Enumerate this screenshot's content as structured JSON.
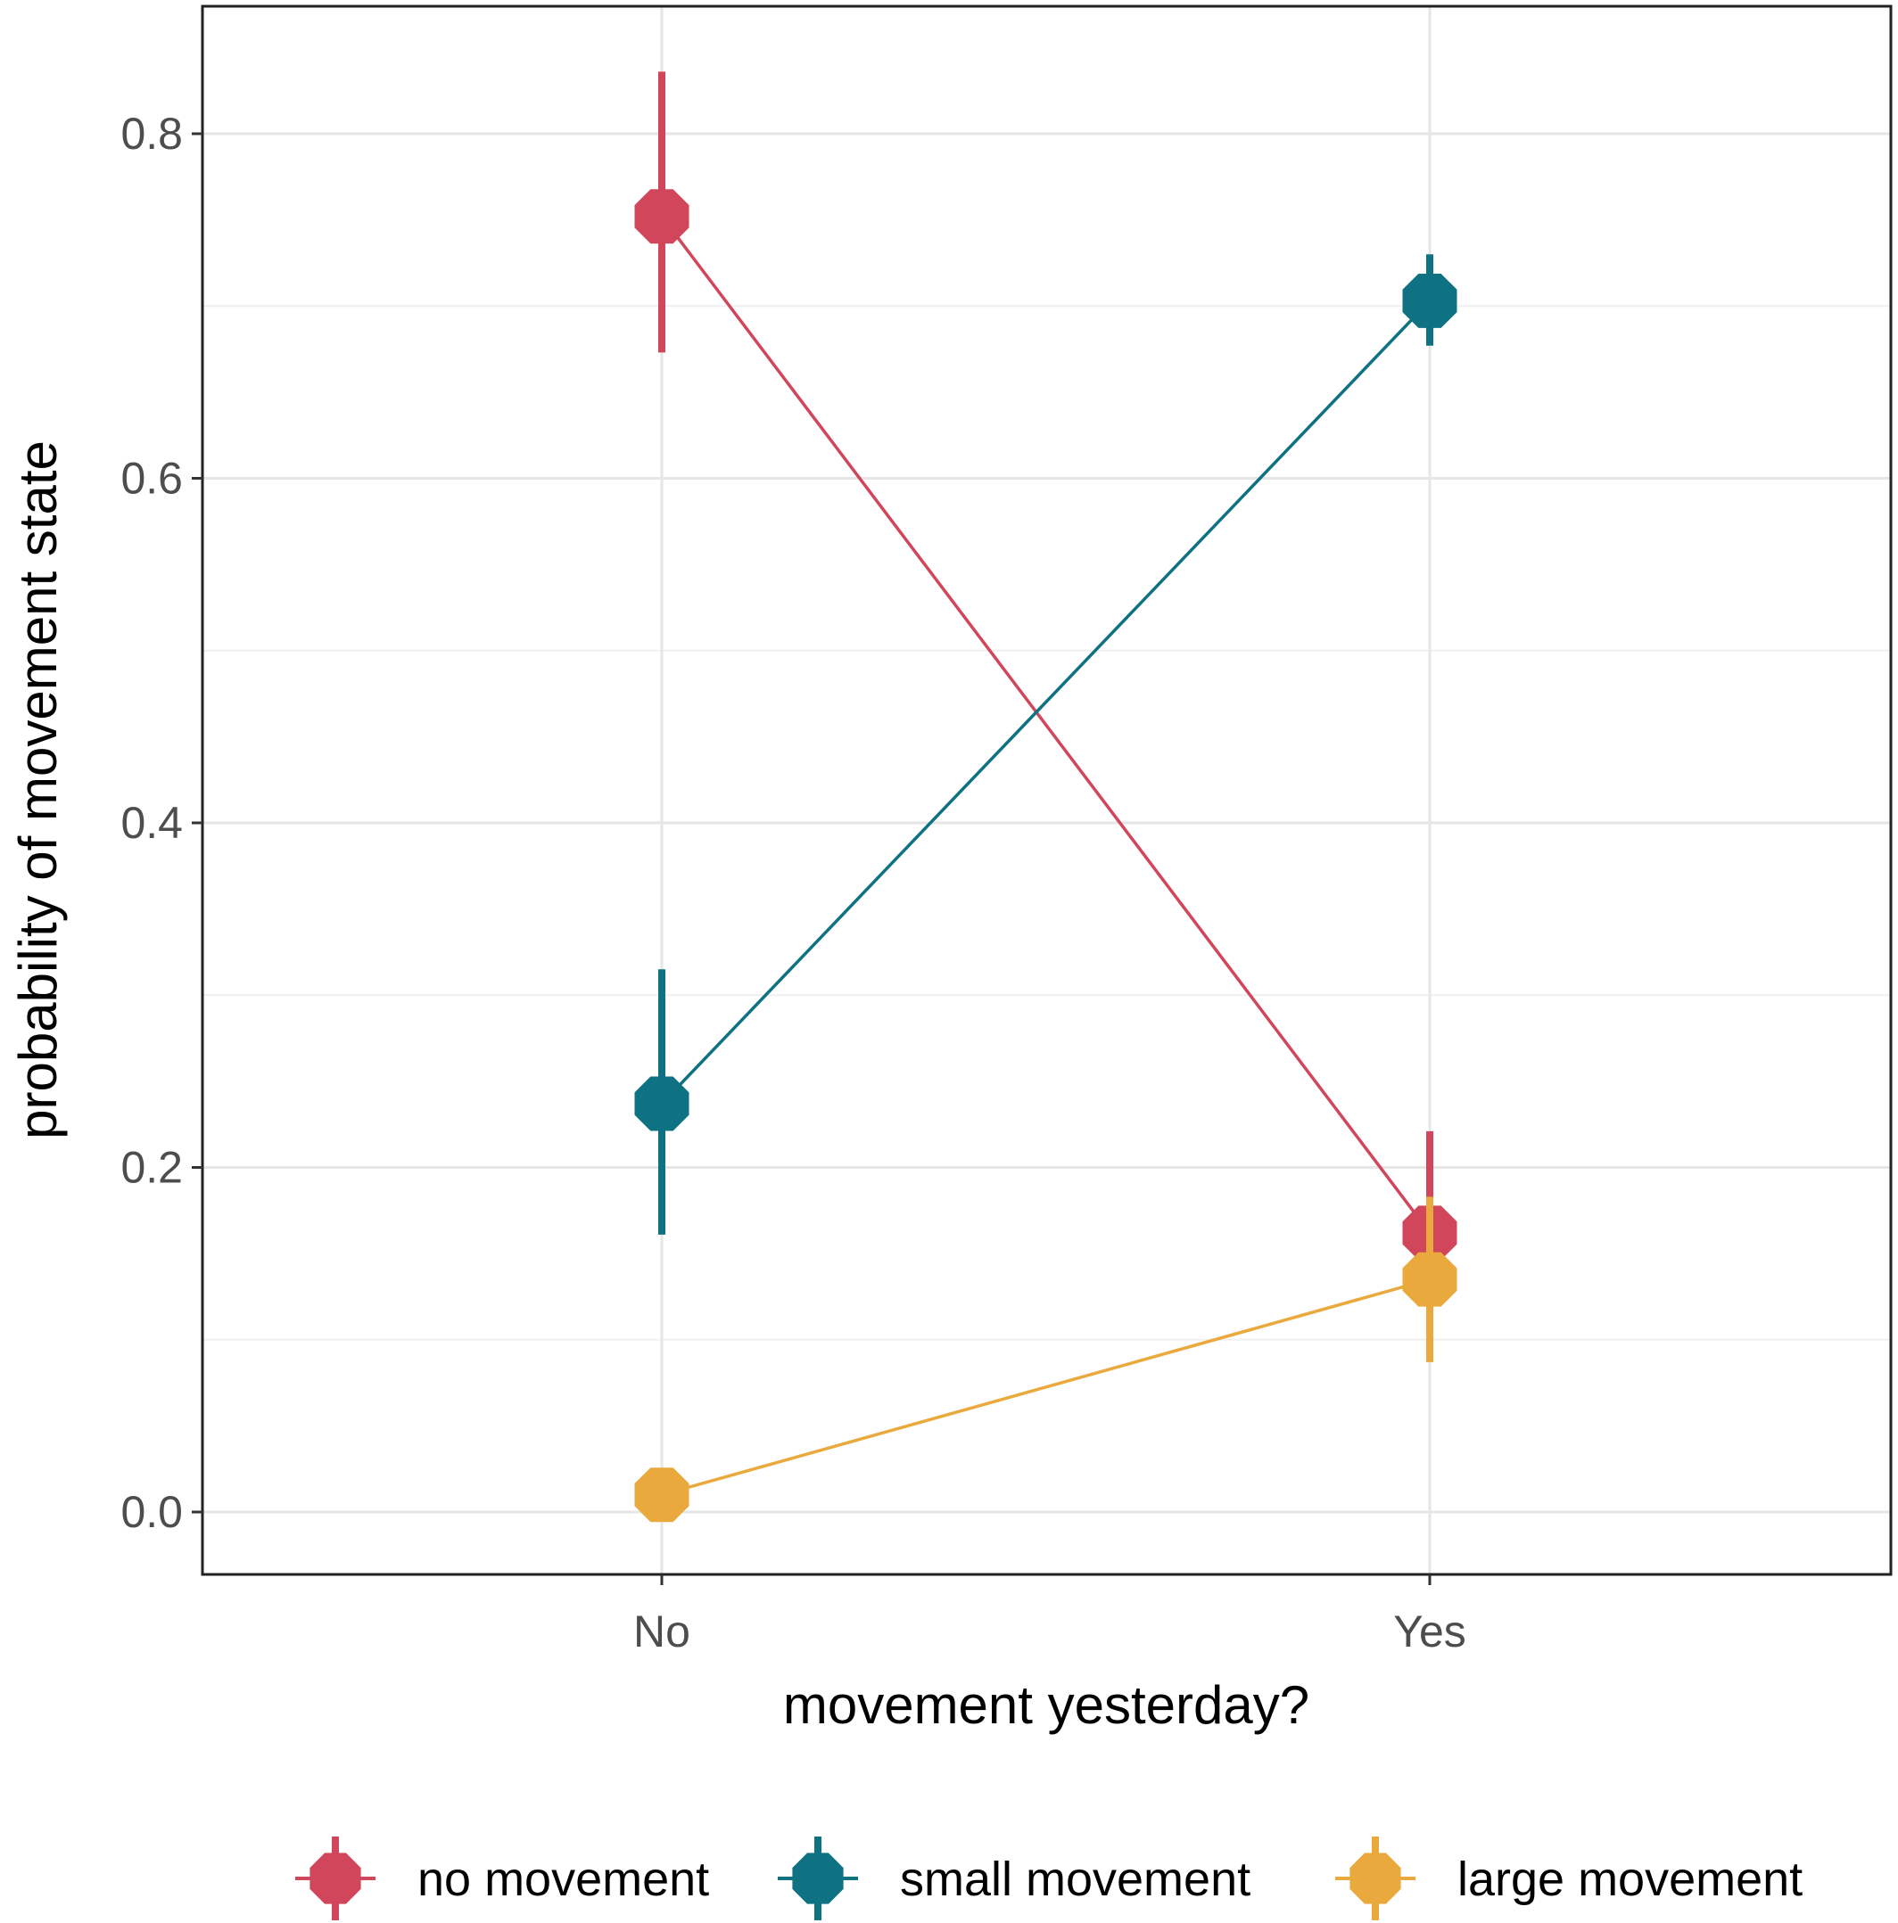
{
  "chart_data": {
    "type": "line",
    "categories": [
      "No",
      "Yes"
    ],
    "xlabel": "movement yesterday?",
    "ylabel": "probability of movement state",
    "ylim": [
      -0.07,
      0.875
    ],
    "yticks": [
      0.0,
      0.2,
      0.4,
      0.6,
      0.8
    ],
    "ytick_labels": [
      "0.0",
      "0.2",
      "0.4",
      "0.6",
      "0.8"
    ],
    "grid": true,
    "legend_position": "bottom",
    "series": [
      {
        "name": "no movement",
        "color": "#d1465a",
        "values": [
          0.752,
          0.162
        ],
        "lower": [
          0.673,
          0.113
        ],
        "upper": [
          0.836,
          0.221
        ]
      },
      {
        "name": "small movement",
        "color": "#0e7283",
        "values": [
          0.237,
          0.703
        ],
        "lower": [
          0.161,
          0.677
        ],
        "upper": [
          0.315,
          0.73
        ]
      },
      {
        "name": "large movement",
        "color": "#eaa93c",
        "values": [
          0.01,
          0.135
        ],
        "lower": [
          0.004,
          0.087
        ],
        "upper": [
          0.017,
          0.183
        ]
      }
    ]
  }
}
